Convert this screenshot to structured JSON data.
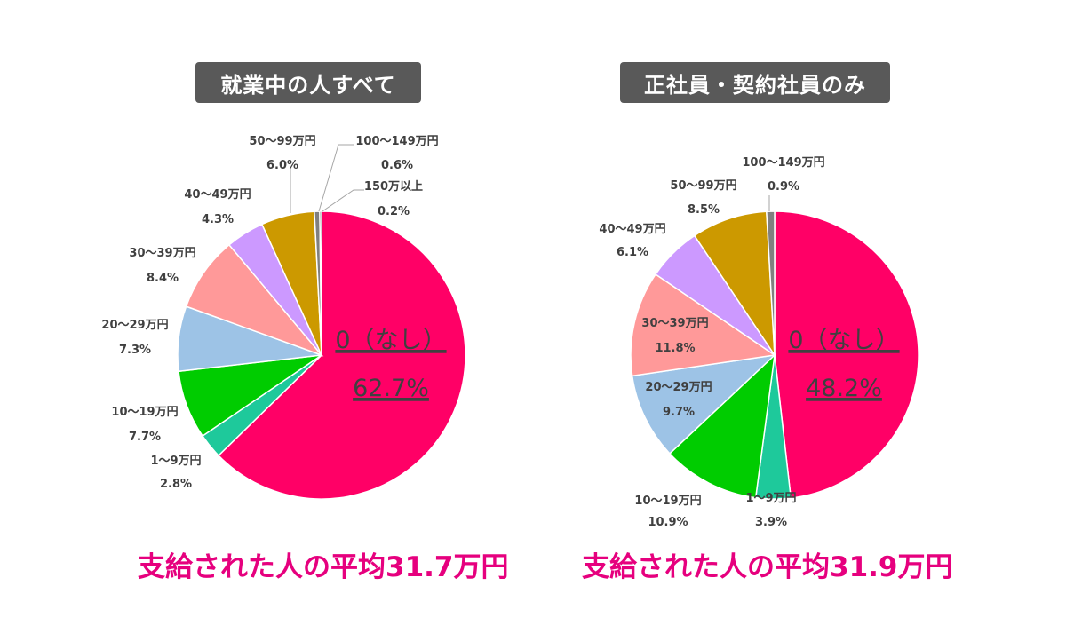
{
  "chart_data": [
    {
      "type": "pie",
      "title": "就業中の人すべて",
      "center_label": "0（なし）",
      "center_value": "62.7%",
      "average_text": "支給された人の平均31.7万円",
      "slices": [
        {
          "label": "0（なし）",
          "value": 62.7,
          "value_label": "62.7%",
          "color": "#ff0066"
        },
        {
          "label": "1～9万円",
          "value": 2.8,
          "value_label": "2.8%",
          "color": "#1ec99b"
        },
        {
          "label": "10～19万円",
          "value": 7.7,
          "value_label": "7.7%",
          "color": "#00cc00"
        },
        {
          "label": "20～29万円",
          "value": 7.3,
          "value_label": "7.3%",
          "color": "#9dc3e6"
        },
        {
          "label": "30～39万円",
          "value": 8.4,
          "value_label": "8.4%",
          "color": "#ff9999"
        },
        {
          "label": "40～49万円",
          "value": 4.3,
          "value_label": "4.3%",
          "color": "#cc99ff"
        },
        {
          "label": "50～99万円",
          "value": 6.0,
          "value_label": "6.0%",
          "color": "#cc9900"
        },
        {
          "label": "100～149万円",
          "value": 0.6,
          "value_label": "0.6%",
          "color": "#808080"
        },
        {
          "label": "150万以上",
          "value": 0.2,
          "value_label": "0.2%",
          "color": "#404040"
        }
      ]
    },
    {
      "type": "pie",
      "title": "正社員・契約社員のみ",
      "center_label": "0（なし）",
      "center_value": "48.2%",
      "average_text": "支給された人の平均31.9万円",
      "slices": [
        {
          "label": "0（なし）",
          "value": 48.2,
          "value_label": "48.2%",
          "color": "#ff0066"
        },
        {
          "label": "1～9万円",
          "value": 3.9,
          "value_label": "3.9%",
          "color": "#1ec99b"
        },
        {
          "label": "10～19万円",
          "value": 10.9,
          "value_label": "10.9%",
          "color": "#00cc00"
        },
        {
          "label": "20～29万円",
          "value": 9.7,
          "value_label": "9.7%",
          "color": "#9dc3e6"
        },
        {
          "label": "30～39万円",
          "value": 11.8,
          "value_label": "11.8%",
          "color": "#ff9999"
        },
        {
          "label": "40～49万円",
          "value": 6.1,
          "value_label": "6.1%",
          "color": "#cc99ff"
        },
        {
          "label": "50～99万円",
          "value": 8.5,
          "value_label": "8.5%",
          "color": "#cc9900"
        },
        {
          "label": "100～149万円",
          "value": 0.9,
          "value_label": "0.9%",
          "color": "#808080"
        }
      ]
    }
  ]
}
